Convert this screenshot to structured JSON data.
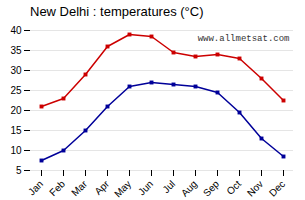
{
  "chart_data": {
    "type": "line",
    "title": "New Delhi : temperatures (°C)",
    "categories": [
      "Jan",
      "Feb",
      "Mar",
      "Apr",
      "May",
      "Jun",
      "Jul",
      "Aug",
      "Sep",
      "Oct",
      "Nov",
      "Dec"
    ],
    "series": [
      {
        "color": "#cc0000",
        "values": [
          21,
          23,
          29,
          36,
          39,
          38.5,
          34.5,
          33.5,
          34,
          33,
          28,
          22.5
        ]
      },
      {
        "color": "#000099",
        "values": [
          7.5,
          10,
          15,
          21,
          26,
          27,
          26.5,
          26,
          24.5,
          19.5,
          13,
          8.5
        ]
      }
    ],
    "ylim": [
      5,
      40
    ],
    "yticks": [
      5,
      10,
      15,
      20,
      25,
      30,
      35,
      40
    ],
    "grid": true,
    "marker": "square",
    "annotation": "www.allmetsat.com"
  }
}
